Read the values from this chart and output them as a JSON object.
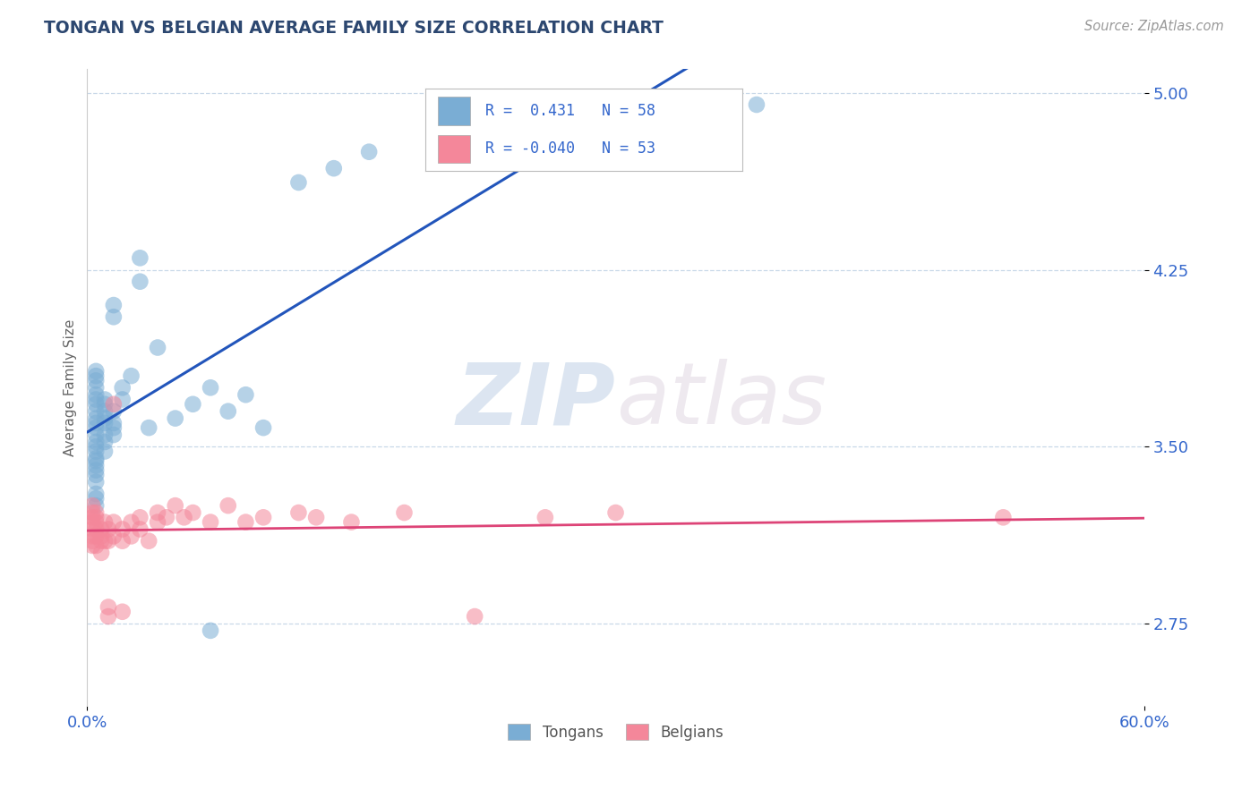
{
  "title": "TONGAN VS BELGIAN AVERAGE FAMILY SIZE CORRELATION CHART",
  "source_text": "Source: ZipAtlas.com",
  "ylabel": "Average Family Size",
  "watermark_zip": "ZIP",
  "watermark_atlas": "atlas",
  "xlim": [
    0.0,
    0.6
  ],
  "ylim": [
    2.4,
    5.1
  ],
  "yticks": [
    2.75,
    3.5,
    4.25,
    5.0
  ],
  "xticks": [
    0.0,
    0.6
  ],
  "xticklabels": [
    "0.0%",
    "60.0%"
  ],
  "tongan_R": 0.431,
  "tongan_N": 58,
  "belgian_R": -0.04,
  "belgian_N": 53,
  "title_color": "#2c4770",
  "axis_tick_color": "#3366cc",
  "background_color": "#ffffff",
  "tongan_color": "#7aadd4",
  "belgian_color": "#f4879a",
  "tongan_line_color": "#2255bb",
  "belgian_line_color": "#dd4477",
  "grid_color": "#c8d8e8",
  "legend_labels": [
    "Tongans",
    "Belgians"
  ],
  "tongan_scatter": [
    [
      0.005,
      3.5
    ],
    [
      0.005,
      3.52
    ],
    [
      0.005,
      3.48
    ],
    [
      0.005,
      3.55
    ],
    [
      0.005,
      3.6
    ],
    [
      0.005,
      3.62
    ],
    [
      0.005,
      3.65
    ],
    [
      0.005,
      3.68
    ],
    [
      0.005,
      3.44
    ],
    [
      0.005,
      3.4
    ],
    [
      0.005,
      3.38
    ],
    [
      0.005,
      3.35
    ],
    [
      0.005,
      3.3
    ],
    [
      0.005,
      3.28
    ],
    [
      0.005,
      3.25
    ],
    [
      0.005,
      3.75
    ],
    [
      0.005,
      3.8
    ],
    [
      0.005,
      3.7
    ],
    [
      0.005,
      3.45
    ],
    [
      0.005,
      3.42
    ],
    [
      0.005,
      3.58
    ],
    [
      0.005,
      3.72
    ],
    [
      0.005,
      3.78
    ],
    [
      0.005,
      3.82
    ],
    [
      0.01,
      3.55
    ],
    [
      0.01,
      3.6
    ],
    [
      0.01,
      3.65
    ],
    [
      0.01,
      3.7
    ],
    [
      0.01,
      3.62
    ],
    [
      0.01,
      3.68
    ],
    [
      0.01,
      3.52
    ],
    [
      0.01,
      3.48
    ],
    [
      0.015,
      3.6
    ],
    [
      0.015,
      3.65
    ],
    [
      0.015,
      3.55
    ],
    [
      0.015,
      3.58
    ],
    [
      0.015,
      4.05
    ],
    [
      0.015,
      4.1
    ],
    [
      0.02,
      3.7
    ],
    [
      0.02,
      3.75
    ],
    [
      0.025,
      3.8
    ],
    [
      0.03,
      4.2
    ],
    [
      0.03,
      4.3
    ],
    [
      0.035,
      3.58
    ],
    [
      0.04,
      3.92
    ],
    [
      0.05,
      3.62
    ],
    [
      0.06,
      3.68
    ],
    [
      0.07,
      3.75
    ],
    [
      0.07,
      2.72
    ],
    [
      0.08,
      3.65
    ],
    [
      0.09,
      3.72
    ],
    [
      0.1,
      3.58
    ],
    [
      0.12,
      4.62
    ],
    [
      0.14,
      4.68
    ],
    [
      0.16,
      4.75
    ],
    [
      0.22,
      4.82
    ],
    [
      0.28,
      4.88
    ],
    [
      0.38,
      4.95
    ]
  ],
  "belgian_scatter": [
    [
      0.003,
      3.2
    ],
    [
      0.003,
      3.18
    ],
    [
      0.003,
      3.15
    ],
    [
      0.003,
      3.22
    ],
    [
      0.003,
      3.12
    ],
    [
      0.003,
      3.1
    ],
    [
      0.003,
      3.08
    ],
    [
      0.003,
      3.25
    ],
    [
      0.005,
      3.2
    ],
    [
      0.005,
      3.18
    ],
    [
      0.005,
      3.15
    ],
    [
      0.005,
      3.12
    ],
    [
      0.005,
      3.08
    ],
    [
      0.005,
      3.22
    ],
    [
      0.008,
      3.1
    ],
    [
      0.008,
      3.05
    ],
    [
      0.008,
      3.15
    ],
    [
      0.008,
      3.12
    ],
    [
      0.01,
      3.18
    ],
    [
      0.01,
      3.1
    ],
    [
      0.012,
      3.15
    ],
    [
      0.012,
      3.1
    ],
    [
      0.012,
      2.78
    ],
    [
      0.012,
      2.82
    ],
    [
      0.015,
      3.68
    ],
    [
      0.015,
      3.18
    ],
    [
      0.015,
      3.12
    ],
    [
      0.02,
      3.15
    ],
    [
      0.02,
      3.1
    ],
    [
      0.02,
      2.8
    ],
    [
      0.025,
      3.18
    ],
    [
      0.025,
      3.12
    ],
    [
      0.03,
      3.2
    ],
    [
      0.03,
      3.15
    ],
    [
      0.035,
      3.1
    ],
    [
      0.04,
      3.22
    ],
    [
      0.04,
      3.18
    ],
    [
      0.045,
      3.2
    ],
    [
      0.05,
      3.25
    ],
    [
      0.055,
      3.2
    ],
    [
      0.06,
      3.22
    ],
    [
      0.07,
      3.18
    ],
    [
      0.08,
      3.25
    ],
    [
      0.09,
      3.18
    ],
    [
      0.1,
      3.2
    ],
    [
      0.12,
      3.22
    ],
    [
      0.13,
      3.2
    ],
    [
      0.15,
      3.18
    ],
    [
      0.18,
      3.22
    ],
    [
      0.22,
      2.78
    ],
    [
      0.26,
      3.2
    ],
    [
      0.3,
      3.22
    ],
    [
      0.52,
      3.2
    ]
  ]
}
